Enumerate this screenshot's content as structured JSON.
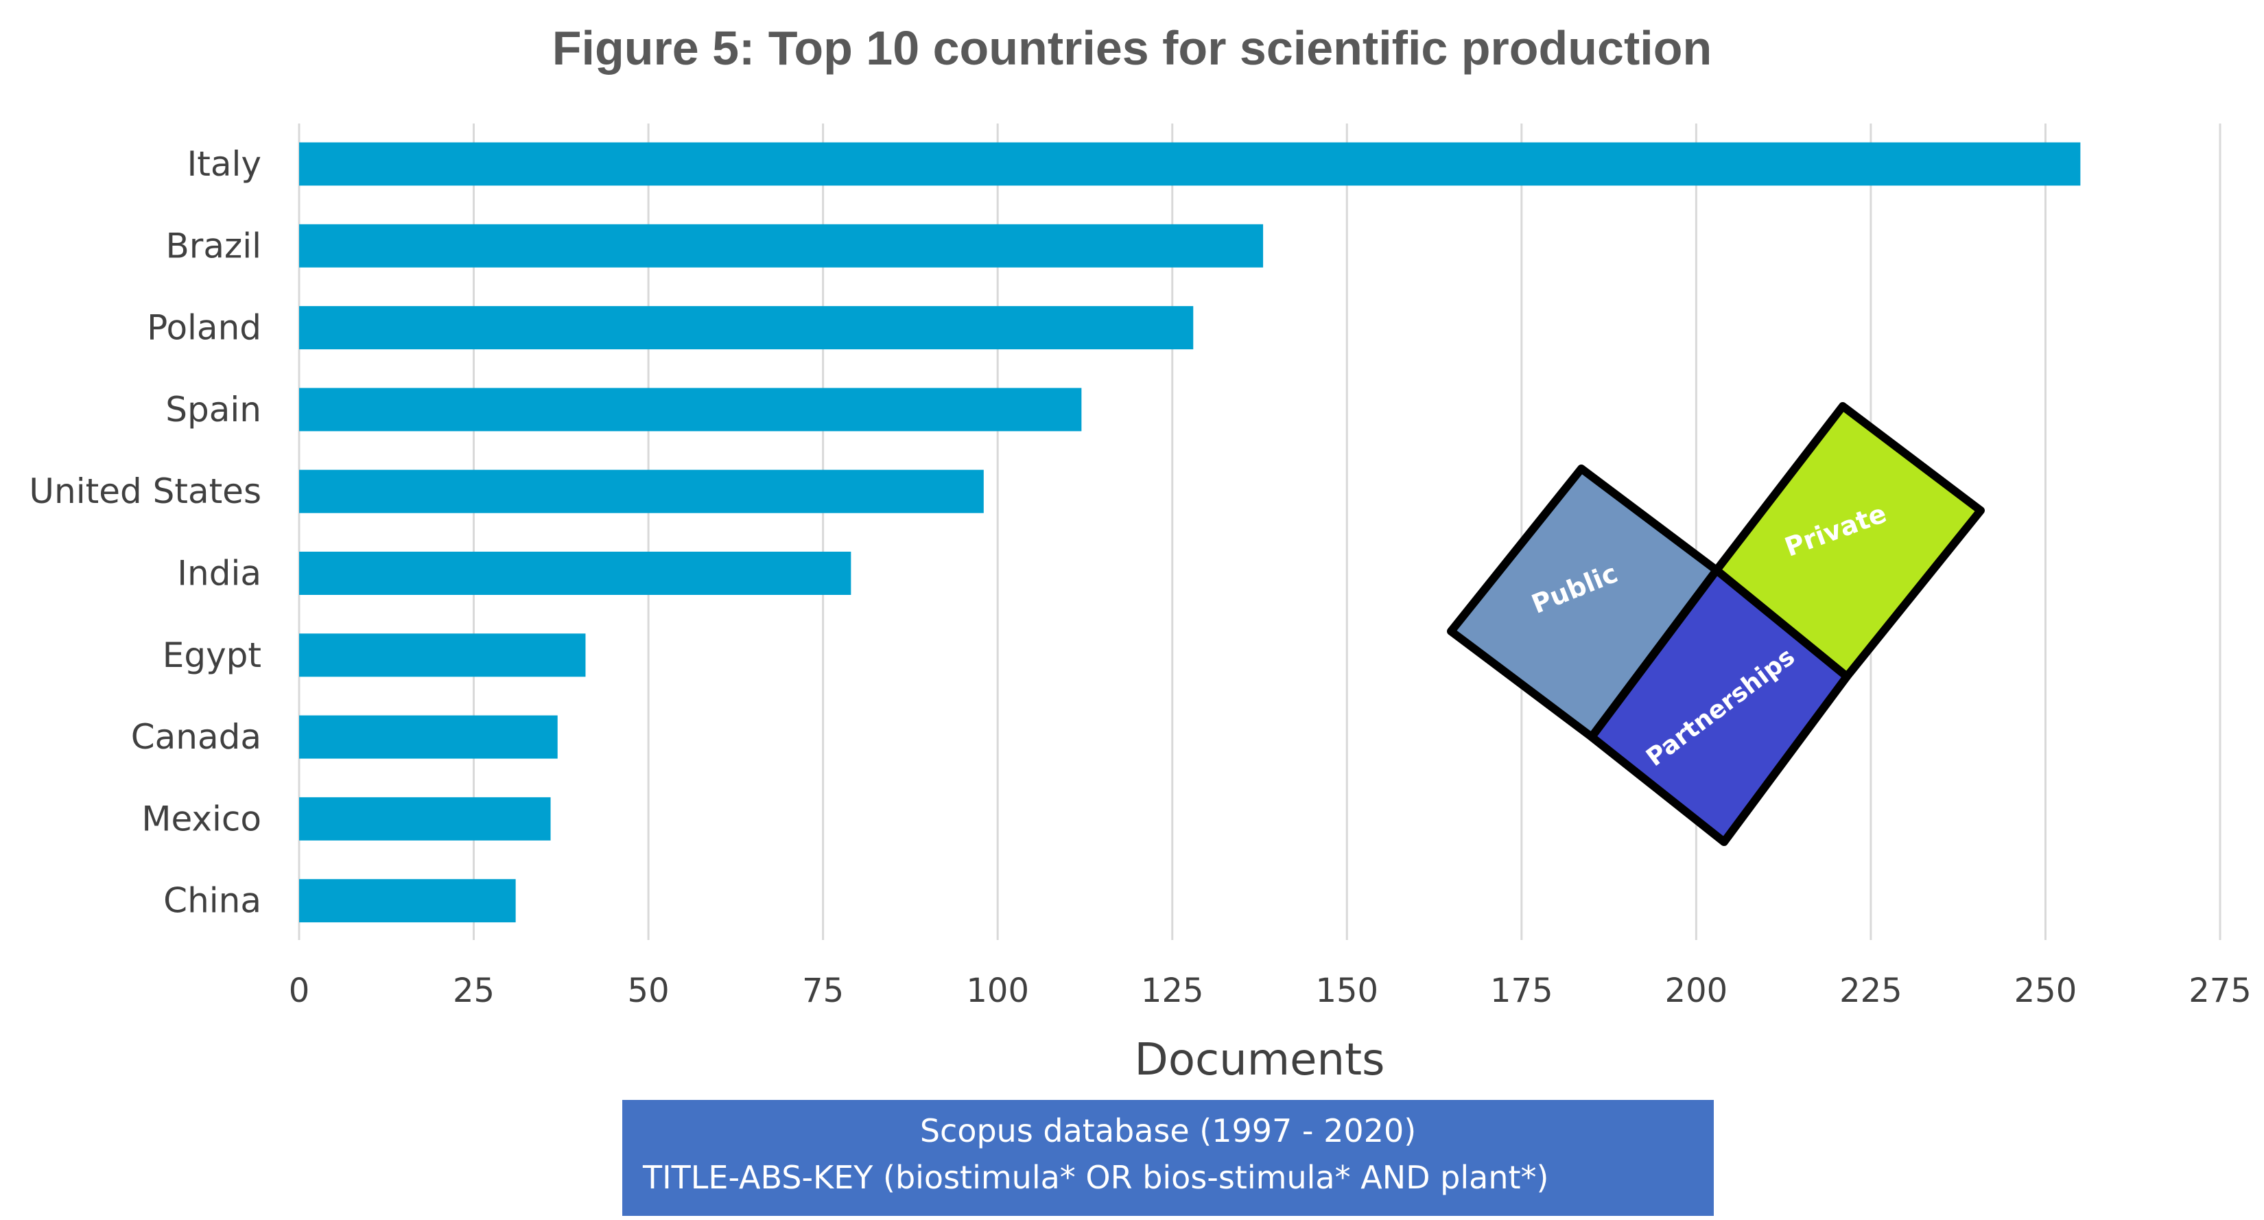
{
  "chart_data": {
    "type": "bar",
    "orientation": "horizontal",
    "title": "Figure 5: Top 10 countries for scientific production",
    "xlabel": "Documents",
    "ylabel": "",
    "categories": [
      "Italy",
      "Brazil",
      "Poland",
      "Spain",
      "United States",
      "India",
      "Egypt",
      "Canada",
      "Mexico",
      "China"
    ],
    "values": [
      255,
      138,
      128,
      112,
      98,
      79,
      41,
      37,
      36,
      31
    ],
    "xlim": [
      0,
      275
    ],
    "xticks": [
      0,
      25,
      50,
      75,
      100,
      125,
      150,
      175,
      200,
      225,
      250,
      275
    ],
    "grid": true,
    "bar_color": "#00A0D0"
  },
  "source_box": {
    "line1": "Scopus database (1997 - 2020)",
    "line2": "TITLE-ABS-KEY (biostimula* OR bios-stimula* AND plant*)",
    "color": "#4472C4"
  },
  "puzzle_image": {
    "pieces": [
      {
        "label": "Public",
        "color": "#7094C0"
      },
      {
        "label": "Private",
        "color": "#B5E61D"
      },
      {
        "label": "Partnerships",
        "color": "#3F48CC"
      }
    ]
  }
}
